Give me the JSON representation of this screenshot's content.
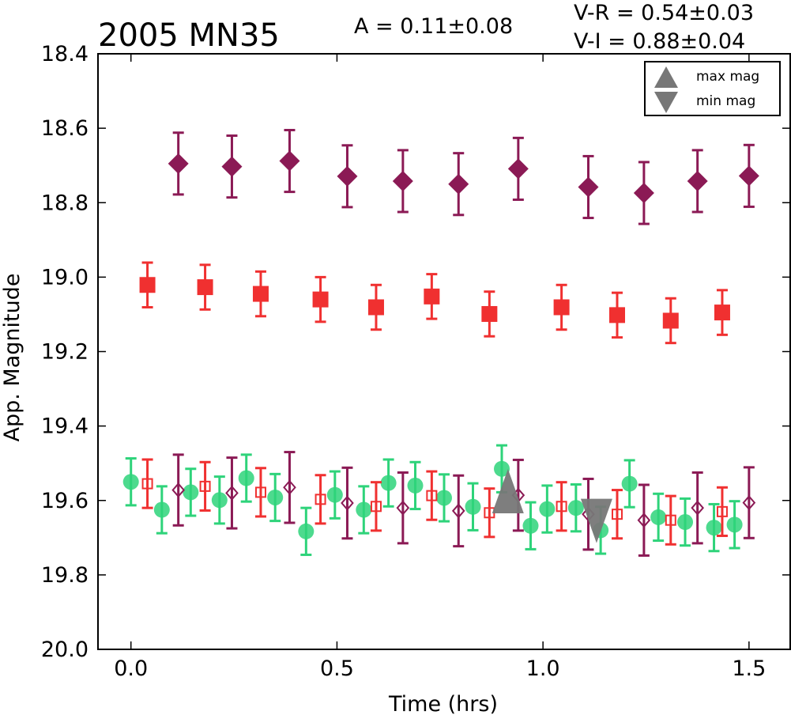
{
  "chart_data": {
    "type": "scatter",
    "title": "2005 MN35",
    "annotations": {
      "amplitude": "A  = 0.11±0.08",
      "v_r": "V-R = 0.54±0.03",
      "v_i": "V-I  = 0.88±0.04"
    },
    "xlabel": "Time (hrs)",
    "ylabel": "App. Magnitude",
    "xlim": [
      -0.08,
      1.6
    ],
    "ylim": [
      20.0,
      18.4
    ],
    "y_inverted": true,
    "x_ticks": [
      0.0,
      0.5,
      1.0,
      1.5
    ],
    "x_tick_labels": [
      "0.0",
      "0.5",
      "1.0",
      "1.5"
    ],
    "y_ticks": [
      18.4,
      18.6,
      18.8,
      19.0,
      19.2,
      19.4,
      19.6,
      19.8,
      20.0
    ],
    "y_tick_labels": [
      "18.4",
      "18.6",
      "18.8",
      "19.0",
      "19.2",
      "19.4",
      "19.6",
      "19.8",
      "20.0"
    ],
    "grid": false,
    "legend": {
      "placement": "top-right",
      "entries": [
        {
          "label": "max mag",
          "marker": "triangle-up",
          "color": "#777777"
        },
        {
          "label": "min mag",
          "marker": "triangle-down",
          "color": "#777777"
        }
      ]
    },
    "series": [
      {
        "marker": "diamond",
        "filled": true,
        "color": "#8b1a55",
        "x": [
          0.115,
          0.245,
          0.385,
          0.525,
          0.66,
          0.795,
          0.94,
          1.11,
          1.245,
          1.375,
          1.5
        ],
        "y": [
          18.695,
          18.703,
          18.688,
          18.729,
          18.742,
          18.75,
          18.709,
          18.758,
          18.774,
          18.742,
          18.728
        ],
        "err": 0.083
      },
      {
        "marker": "square",
        "filled": true,
        "color": "#f03030",
        "x": [
          0.04,
          0.18,
          0.315,
          0.46,
          0.595,
          0.73,
          0.87,
          1.045,
          1.18,
          1.31,
          1.435
        ],
        "y": [
          19.021,
          19.027,
          19.045,
          19.06,
          19.081,
          19.052,
          19.099,
          19.081,
          19.102,
          19.117,
          19.095
        ],
        "err": 0.06
      },
      {
        "marker": "circle",
        "filled": true,
        "color": "#2ed37a",
        "x": [
          0.0,
          0.075,
          0.145,
          0.215,
          0.28,
          0.35,
          0.425,
          0.495,
          0.565,
          0.625,
          0.69,
          0.76,
          0.83,
          0.9,
          0.97,
          1.01,
          1.08,
          1.14,
          1.21,
          1.28,
          1.345,
          1.415,
          1.465
        ],
        "y": [
          19.55,
          19.625,
          19.578,
          19.599,
          19.54,
          19.592,
          19.683,
          19.585,
          19.625,
          19.553,
          19.56,
          19.593,
          19.617,
          19.515,
          19.668,
          19.623,
          19.62,
          19.68,
          19.555,
          19.645,
          19.658,
          19.673,
          19.665
        ],
        "err": 0.063
      },
      {
        "marker": "square",
        "filled": false,
        "color": "#f03030",
        "x": [
          0.04,
          0.18,
          0.315,
          0.46,
          0.595,
          0.73,
          0.87,
          1.045,
          1.18,
          1.31,
          1.435
        ],
        "y": [
          19.555,
          19.562,
          19.578,
          19.597,
          19.616,
          19.587,
          19.633,
          19.616,
          19.637,
          19.653,
          19.63
        ],
        "err": 0.065
      },
      {
        "marker": "diamond",
        "filled": false,
        "color": "#8b1a55",
        "x": [
          0.115,
          0.245,
          0.385,
          0.525,
          0.66,
          0.795,
          0.94,
          1.11,
          1.245,
          1.375,
          1.5
        ],
        "y": [
          19.572,
          19.58,
          19.565,
          19.607,
          19.62,
          19.628,
          19.586,
          19.637,
          19.653,
          19.62,
          19.606
        ],
        "err": 0.095
      }
    ],
    "extrema": [
      {
        "type": "max",
        "x": 0.915,
        "y": 19.575,
        "color": "#777777"
      },
      {
        "type": "min",
        "x": 1.13,
        "y": 19.655,
        "color": "#777777"
      }
    ]
  }
}
